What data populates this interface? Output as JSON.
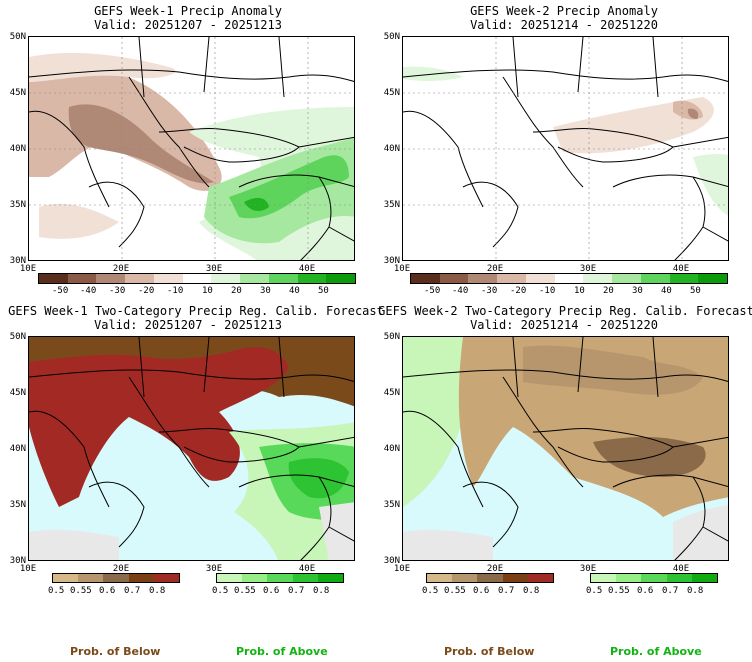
{
  "panels": [
    {
      "title": "GEFS Week-1 Precip Anomaly",
      "valid": "Valid: 20251207 - 20251213"
    },
    {
      "title": "GEFS Week-2 Precip Anomaly",
      "valid": "Valid: 20251214 - 20251220"
    },
    {
      "title": "GEFS Week-1 Two-Category Precip Reg. Calib. Forecast",
      "valid": "Valid: 20251207 - 20251213"
    },
    {
      "title": "GEFS Week-2 Two-Category Precip Reg. Calib. Forecast",
      "valid": "Valid: 20251214 - 20251220"
    }
  ],
  "axes": {
    "lat_labels": [
      "50N",
      "45N",
      "40N",
      "35N",
      "30N"
    ],
    "lon_labels": [
      "10E",
      "20E",
      "30E",
      "40E"
    ]
  },
  "anomaly_colorbar": {
    "ticks": [
      "-50",
      "-40",
      "-30",
      "-20",
      "-10",
      "10",
      "20",
      "30",
      "40",
      "50"
    ],
    "colors": [
      "#5a2e1c",
      "#8a5a46",
      "#b08876",
      "#d9b8a8",
      "#f1e0d6",
      "#ffffff",
      "#e0f6dc",
      "#a6e8a0",
      "#5ed45c",
      "#22b322",
      "#0a9a0a"
    ]
  },
  "prob_colorbars": {
    "below_ticks": [
      "0.5",
      "0.55",
      "0.6",
      "0.7",
      "0.8"
    ],
    "above_ticks": [
      "0.5",
      "0.55",
      "0.6",
      "0.7",
      "0.8"
    ],
    "below_colors": [
      "#d7b889",
      "#b8966d",
      "#8b6a4a",
      "#7b3f15",
      "#a02b22"
    ],
    "above_colors": [
      "#c8f7b8",
      "#96ee87",
      "#58d95a",
      "#2dc332",
      "#10ab10"
    ]
  },
  "legend": {
    "below": "Prob. of Below",
    "above": "Prob. of Above"
  },
  "colors": {
    "sea": "#d8fafc",
    "land_mask": "#e8e8e8",
    "below_brown": "#7b4a1a",
    "below_red": "#a32a24",
    "tan": "#c8a676",
    "green_light": "#c8f5b8"
  }
}
